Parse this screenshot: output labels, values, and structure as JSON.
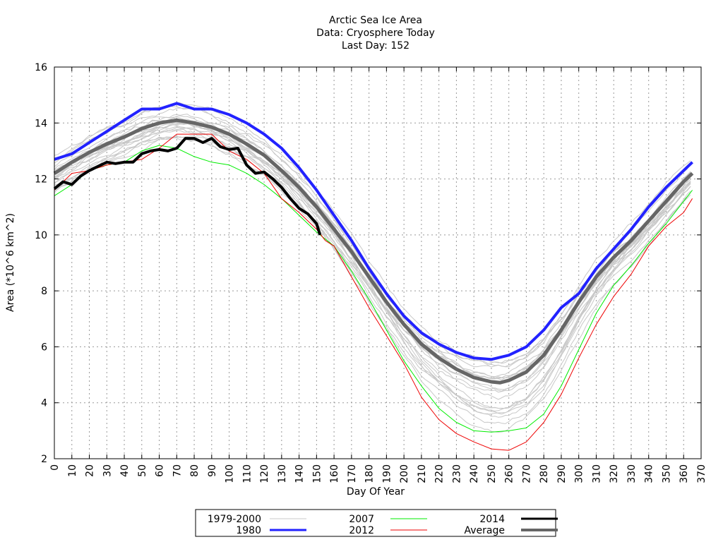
{
  "chart_data": {
    "type": "line",
    "title": [
      "Arctic Sea Ice Area",
      "Data: Cryosphere Today",
      "Last Day: 152"
    ],
    "xlabel": "Day Of Year",
    "ylabel": "Area (*10^6 km^2)",
    "xlim": [
      0,
      370
    ],
    "ylim": [
      2,
      16
    ],
    "xticks": [
      0,
      10,
      20,
      30,
      40,
      50,
      60,
      70,
      80,
      90,
      100,
      110,
      120,
      130,
      140,
      150,
      160,
      170,
      180,
      190,
      200,
      210,
      220,
      230,
      240,
      250,
      260,
      270,
      280,
      290,
      300,
      310,
      320,
      330,
      340,
      350,
      360,
      370
    ],
    "yticks": [
      2,
      4,
      6,
      8,
      10,
      12,
      14,
      16
    ],
    "grid": true,
    "legend_position": "bottom",
    "legend": [
      {
        "label": "1979-2000",
        "color": "#c8c8c8"
      },
      {
        "label": "2007",
        "color": "#00ee00"
      },
      {
        "label": "2014",
        "color": "#000000"
      },
      {
        "label": "1980",
        "color": "#2222ff"
      },
      {
        "label": "2012",
        "color": "#ee0000"
      },
      {
        "label": "Average",
        "color": "#666666"
      }
    ],
    "series": [
      {
        "name": "1980",
        "color": "#2222ff",
        "width": 4,
        "x": [
          0,
          10,
          20,
          30,
          40,
          50,
          60,
          70,
          80,
          90,
          100,
          110,
          120,
          130,
          140,
          150,
          160,
          170,
          180,
          190,
          200,
          210,
          220,
          230,
          240,
          250,
          260,
          270,
          280,
          290,
          300,
          310,
          320,
          330,
          340,
          350,
          360,
          365
        ],
        "y": [
          12.7,
          12.9,
          13.3,
          13.7,
          14.1,
          14.5,
          14.5,
          14.7,
          14.5,
          14.5,
          14.3,
          14.0,
          13.6,
          13.1,
          12.4,
          11.6,
          10.7,
          9.8,
          8.8,
          7.9,
          7.1,
          6.5,
          6.1,
          5.8,
          5.6,
          5.55,
          5.7,
          6.0,
          6.6,
          7.4,
          7.9,
          8.8,
          9.5,
          10.2,
          11.0,
          11.7,
          12.3,
          12.6
        ]
      },
      {
        "name": "2007",
        "color": "#00ee00",
        "width": 1,
        "x": [
          0,
          10,
          20,
          30,
          40,
          50,
          60,
          70,
          80,
          90,
          100,
          110,
          120,
          130,
          140,
          150,
          160,
          170,
          180,
          190,
          200,
          210,
          220,
          230,
          240,
          250,
          260,
          270,
          280,
          290,
          300,
          310,
          320,
          330,
          340,
          350,
          360,
          365
        ],
        "y": [
          11.4,
          11.8,
          12.3,
          12.5,
          12.6,
          13.0,
          13.2,
          13.1,
          12.8,
          12.6,
          12.5,
          12.2,
          11.8,
          11.3,
          10.7,
          10.1,
          9.6,
          8.7,
          7.7,
          6.6,
          5.5,
          4.6,
          3.8,
          3.3,
          3.0,
          2.95,
          3.0,
          3.1,
          3.6,
          4.6,
          5.9,
          7.2,
          8.2,
          8.9,
          9.7,
          10.4,
          11.2,
          11.6
        ]
      },
      {
        "name": "2012",
        "color": "#ee0000",
        "width": 1,
        "x": [
          0,
          10,
          20,
          30,
          40,
          50,
          60,
          70,
          80,
          90,
          100,
          110,
          120,
          130,
          140,
          150,
          155,
          160,
          170,
          180,
          190,
          200,
          210,
          220,
          230,
          240,
          250,
          260,
          270,
          280,
          290,
          300,
          310,
          320,
          330,
          340,
          350,
          360,
          365
        ],
        "y": [
          11.6,
          12.2,
          12.3,
          12.5,
          12.6,
          12.7,
          13.1,
          13.6,
          13.6,
          13.6,
          13.0,
          12.7,
          12.2,
          11.3,
          10.8,
          10.2,
          9.8,
          9.6,
          8.5,
          7.4,
          6.4,
          5.4,
          4.2,
          3.4,
          2.9,
          2.6,
          2.35,
          2.3,
          2.6,
          3.3,
          4.3,
          5.6,
          6.8,
          7.8,
          8.6,
          9.6,
          10.3,
          10.8,
          11.3
        ]
      },
      {
        "name": "Average",
        "color": "#666666",
        "width": 5,
        "x": [
          0,
          10,
          20,
          30,
          40,
          50,
          60,
          70,
          80,
          90,
          100,
          110,
          120,
          130,
          140,
          150,
          160,
          170,
          180,
          190,
          200,
          210,
          220,
          230,
          240,
          250,
          255,
          260,
          270,
          280,
          290,
          300,
          310,
          320,
          330,
          340,
          350,
          360,
          365
        ],
        "y": [
          12.2,
          12.6,
          12.95,
          13.25,
          13.5,
          13.8,
          14.0,
          14.1,
          14.0,
          13.85,
          13.6,
          13.25,
          12.85,
          12.3,
          11.7,
          11.0,
          10.2,
          9.4,
          8.5,
          7.6,
          6.8,
          6.1,
          5.6,
          5.2,
          4.9,
          4.75,
          4.72,
          4.8,
          5.1,
          5.7,
          6.6,
          7.6,
          8.5,
          9.2,
          9.8,
          10.5,
          11.2,
          11.9,
          12.2
        ]
      },
      {
        "name": "2014",
        "color": "#000000",
        "width": 4,
        "x": [
          0,
          5,
          10,
          15,
          20,
          25,
          30,
          35,
          40,
          45,
          50,
          55,
          60,
          65,
          70,
          75,
          80,
          85,
          90,
          95,
          100,
          105,
          110,
          115,
          120,
          125,
          130,
          135,
          140,
          145,
          150,
          152
        ],
        "y": [
          11.65,
          11.9,
          11.8,
          12.1,
          12.3,
          12.45,
          12.6,
          12.55,
          12.6,
          12.6,
          12.9,
          13.0,
          13.05,
          13.0,
          13.1,
          13.45,
          13.45,
          13.3,
          13.45,
          13.15,
          13.05,
          13.1,
          12.5,
          12.2,
          12.25,
          12.0,
          11.7,
          11.3,
          10.95,
          10.75,
          10.4,
          10.0
        ]
      }
    ]
  }
}
